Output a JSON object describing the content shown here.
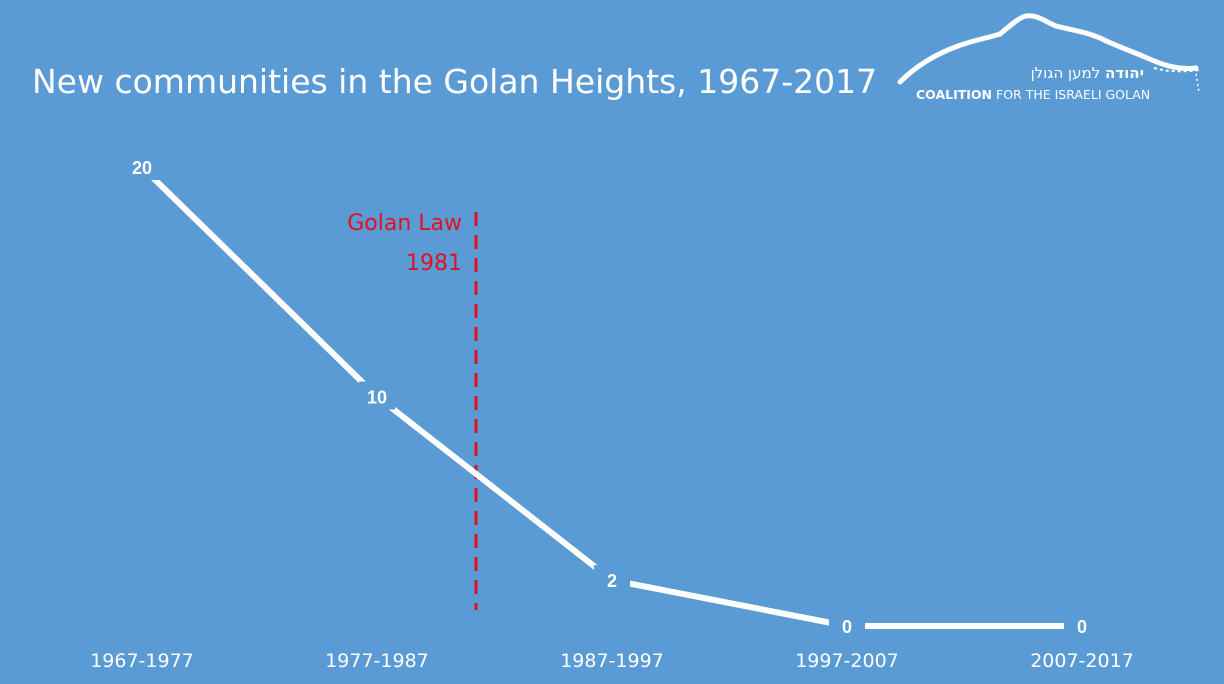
{
  "title": "New communities in the Golan Heights, 1967-2017",
  "logo": {
    "hebrew_bold": "יהודה",
    "hebrew_rest": "למען הגולן",
    "english_bold": "COALITION",
    "english_rest": "FOR THE ISRAELI GOLAN"
  },
  "colors": {
    "background": "#5b9bd5",
    "line": "#ffffff",
    "annotation": "#e3101d"
  },
  "chart_data": {
    "type": "line",
    "categories": [
      "1967-1977",
      "1977-1987",
      "1987-1997",
      "1997-2007",
      "2007-2017"
    ],
    "values": [
      20,
      10,
      2,
      0,
      0
    ],
    "ylim": [
      0,
      20
    ],
    "grid": false,
    "legend": "none",
    "drop_lines": true,
    "annotation": {
      "lines": [
        "Golan Law",
        "1981"
      ],
      "year": 1981,
      "style": "dashed-vertical"
    }
  }
}
